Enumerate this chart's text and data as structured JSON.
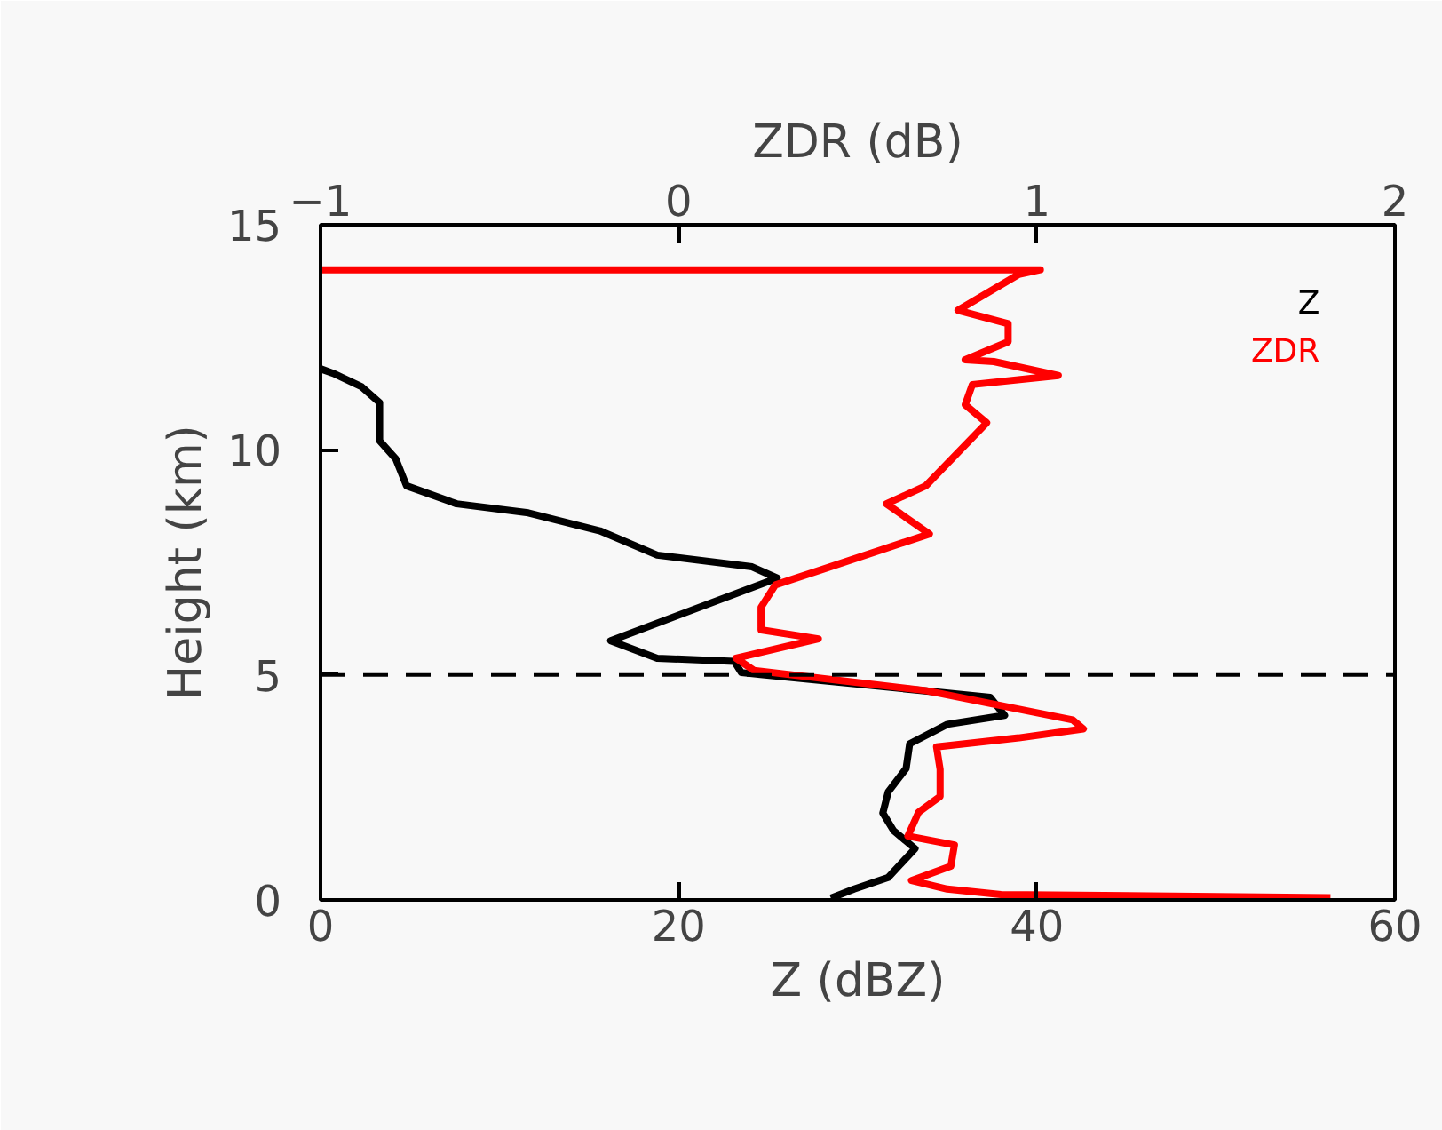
{
  "chart_data": {
    "type": "line",
    "xlabel": "Z (dBZ)",
    "x2label": "ZDR (dB)",
    "ylabel": "Height (km)",
    "xlim": [
      0,
      60
    ],
    "xticks": [
      0,
      20,
      40,
      60
    ],
    "x2lim": [
      -1,
      2
    ],
    "x2ticks": [
      -1,
      0,
      1,
      2
    ],
    "ylim": [
      0,
      15
    ],
    "yticks": [
      0,
      5,
      10,
      15
    ],
    "series": [
      {
        "name": "Z",
        "color": "#000000",
        "x": [
          0,
          0.7,
          2.3,
          3.3,
          3.3,
          4.2,
          4.8,
          7.6,
          11.6,
          15.6,
          18.8,
          24.1,
          25.5,
          16.2,
          18.8,
          23.1,
          23.5,
          37.4,
          38.2,
          35.0,
          32.9,
          32.7,
          31.7,
          31.4,
          32.0,
          33.2,
          31.7,
          29.8,
          28.5
        ],
        "values": [
          11.8,
          11.7,
          11.4,
          11.05,
          10.2,
          9.8,
          9.2,
          8.8,
          8.6,
          8.2,
          7.66,
          7.4,
          7.15,
          5.76,
          5.37,
          5.3,
          5.05,
          4.5,
          4.1,
          3.9,
          3.47,
          2.92,
          2.4,
          1.93,
          1.54,
          1.14,
          0.5,
          0.24,
          0.04
        ]
      },
      {
        "name": "ZDR",
        "color": "#ff0000",
        "axis": "x2",
        "x": [
          -1.0,
          1.01,
          0.95,
          0.78,
          0.92,
          0.92,
          0.8,
          0.88,
          1.06,
          0.82,
          0.8,
          0.86,
          0.69,
          0.58,
          0.7,
          0.4,
          0.27,
          0.23,
          0.23,
          0.39,
          0.16,
          0.21,
          0.69,
          1.1,
          1.13,
          0.95,
          0.72,
          0.73,
          0.73,
          0.67,
          0.64,
          0.77,
          0.76,
          0.65,
          0.75,
          0.9,
          1.82
        ],
        "values": [
          14.0,
          14.0,
          13.9,
          13.1,
          12.8,
          12.4,
          12.0,
          11.96,
          11.65,
          11.45,
          11.0,
          10.6,
          9.2,
          8.8,
          8.13,
          7.34,
          7.0,
          6.5,
          6.0,
          5.8,
          5.37,
          5.1,
          4.65,
          4.0,
          3.8,
          3.6,
          3.4,
          2.9,
          2.3,
          1.95,
          1.42,
          1.22,
          0.75,
          0.43,
          0.24,
          0.12,
          0.05
        ]
      }
    ],
    "ref_lines": [
      {
        "axis": "y",
        "value": 5,
        "color": "#000000",
        "line_style": "dashed"
      }
    ],
    "grid": false,
    "line_style": "solid",
    "marker": "none"
  }
}
